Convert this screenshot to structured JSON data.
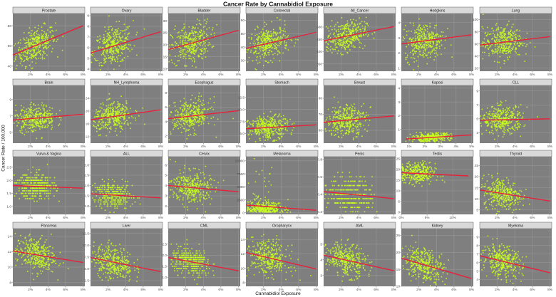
{
  "title": "Cancer Rate by Cannabidiol Exposure",
  "xlabel": "Cannabidiol Exposure",
  "ylabel": "Cancer Rate / 100,000",
  "colors": {
    "point": "#c8ff1e",
    "trend": "#e8203a",
    "panel_bg": "#7f7f7f",
    "grid": "#9c9c9c",
    "strip_bg": "#d9d9d9"
  },
  "chart_data": [
    {
      "type": "scatter",
      "panel": "Prostate",
      "xlim": [
        0,
        8.2
      ],
      "ylim": [
        35,
        92
      ],
      "xticks": [
        2,
        4,
        6,
        8
      ],
      "xtick_labels": [
        "2%",
        "4%",
        "6%",
        "8%"
      ],
      "yticks": [
        40,
        60,
        80
      ],
      "trend": [
        [
          0,
          51
        ],
        [
          8,
          80
        ]
      ],
      "center": [
        2.5,
        62
      ],
      "spread": [
        1.6,
        8
      ]
    },
    {
      "type": "scatter",
      "panel": "Ovary",
      "xlim": [
        0,
        8.2
      ],
      "ylim": [
        3.8,
        9.2
      ],
      "xticks": [
        2,
        4,
        6,
        8
      ],
      "xtick_labels": [
        "2%",
        "4%",
        "6%",
        "8%"
      ],
      "yticks": [
        4,
        5,
        6,
        7,
        8,
        9
      ],
      "trend": [
        [
          0,
          5.5
        ],
        [
          8,
          7.5
        ]
      ],
      "center": [
        2.5,
        6.3
      ],
      "spread": [
        1.6,
        0.9
      ]
    },
    {
      "type": "scatter",
      "panel": "Bladder",
      "xlim": [
        0,
        8.2
      ],
      "ylim": [
        9,
        33
      ],
      "xticks": [
        2,
        4,
        6,
        8
      ],
      "xtick_labels": [
        "2%",
        "4%",
        "6%",
        "8%"
      ],
      "yticks": [
        10,
        15,
        20,
        25,
        30
      ],
      "trend": [
        [
          0,
          18
        ],
        [
          8,
          26
        ]
      ],
      "center": [
        2.5,
        21
      ],
      "spread": [
        1.6,
        4
      ]
    },
    {
      "type": "scatter",
      "panel": "Colorectal",
      "xlim": [
        0,
        8.2
      ],
      "ylim": [
        22,
        65
      ],
      "xticks": [
        2,
        4,
        6,
        8
      ],
      "xtick_labels": [
        "2%",
        "4%",
        "6%",
        "8%"
      ],
      "yticks": [
        30,
        40,
        50,
        60
      ],
      "trend": [
        [
          0,
          39
        ],
        [
          8,
          51
        ]
      ],
      "center": [
        2.5,
        43
      ],
      "spread": [
        1.6,
        6
      ]
    },
    {
      "type": "scatter",
      "panel": "All_Cancer",
      "xlim": [
        0,
        8.2
      ],
      "ylim": [
        320,
        555
      ],
      "xticks": [
        2,
        4,
        6,
        8
      ],
      "xtick_labels": [
        "2%",
        "4%",
        "6%",
        "8%"
      ],
      "yticks": [
        350,
        400,
        450,
        500
      ],
      "trend": [
        [
          0,
          444
        ],
        [
          8,
          502
        ]
      ],
      "center": [
        2.5,
        465
      ],
      "spread": [
        1.6,
        30
      ]
    },
    {
      "type": "scatter",
      "panel": "Hodgkins",
      "xlim": [
        0,
        8.2
      ],
      "ylim": [
        0.8,
        4.6
      ],
      "xticks": [
        2,
        4,
        6,
        8
      ],
      "xtick_labels": [
        "2%",
        "4%",
        "6%",
        "8%"
      ],
      "yticks": [
        1,
        2,
        3,
        4
      ],
      "trend": [
        [
          0,
          2.6
        ],
        [
          8,
          3.2
        ]
      ],
      "center": [
        2.5,
        2.7
      ],
      "spread": [
        1.6,
        0.6
      ]
    },
    {
      "type": "scatter",
      "panel": "Lung",
      "xlim": [
        0,
        8.2
      ],
      "ylim": [
        15,
        110
      ],
      "xticks": [
        2,
        4,
        6,
        8
      ],
      "xtick_labels": [
        "2%",
        "4%",
        "6%",
        "8%"
      ],
      "yticks": [
        20,
        40,
        60,
        80,
        100
      ],
      "trend": [
        [
          0,
          58
        ],
        [
          8,
          72
        ]
      ],
      "center": [
        2.5,
        62
      ],
      "spread": [
        1.6,
        14
      ]
    },
    {
      "type": "scatter",
      "panel": "Brain",
      "xlim": [
        0,
        8.2
      ],
      "ylim": [
        3.7,
        10.7
      ],
      "xticks": [
        2,
        4,
        6,
        8
      ],
      "xtick_labels": [
        "2%",
        "4%",
        "6%",
        "8%"
      ],
      "yticks": [
        5,
        7,
        9
      ],
      "trend": [
        [
          0,
          6.5
        ],
        [
          8,
          7.2
        ]
      ],
      "center": [
        2.5,
        6.8
      ],
      "spread": [
        1.6,
        0.8
      ]
    },
    {
      "type": "scatter",
      "panel": "NH_Lymphoma",
      "xlim": [
        0,
        8.2
      ],
      "ylim": [
        10,
        28
      ],
      "xticks": [
        2,
        4,
        6,
        8
      ],
      "xtick_labels": [
        "2%",
        "4%",
        "6%",
        "8%"
      ],
      "yticks": [
        12,
        16,
        20,
        24
      ],
      "trend": [
        [
          0,
          17.3
        ],
        [
          8,
          20.4
        ]
      ],
      "center": [
        2.5,
        18.2
      ],
      "spread": [
        1.6,
        2.2
      ]
    },
    {
      "type": "scatter",
      "panel": "Esophagus",
      "xlim": [
        0,
        8.2
      ],
      "ylim": [
        1,
        9
      ],
      "xticks": [
        2,
        4,
        6,
        8
      ],
      "xtick_labels": [
        "2%",
        "4%",
        "6%",
        "8%"
      ],
      "yticks": [
        2,
        4,
        6,
        8
      ],
      "trend": [
        [
          0,
          4.4
        ],
        [
          8,
          5.5
        ]
      ],
      "center": [
        2.5,
        4.7
      ],
      "spread": [
        1.6,
        1.1
      ]
    },
    {
      "type": "scatter",
      "panel": "Stomach",
      "xlim": [
        0,
        8.2
      ],
      "ylim": [
        3,
        15
      ],
      "xticks": [
        2,
        4,
        6,
        8
      ],
      "xtick_labels": [
        "2%",
        "4%",
        "6%",
        "8%"
      ],
      "yticks": [
        5,
        7.5,
        10,
        12.5
      ],
      "ytick_labels": [
        "5.0",
        "7.5",
        "10.0",
        "12.5"
      ],
      "trend": [
        [
          0,
          6.0
        ],
        [
          8,
          6.8
        ]
      ],
      "center": [
        2.5,
        6.2
      ],
      "spread": [
        1.6,
        1.2
      ]
    },
    {
      "type": "scatter",
      "panel": "Breast",
      "xlim": [
        0,
        8.2
      ],
      "ylim": [
        52,
        88
      ],
      "xticks": [
        2,
        4,
        6,
        8
      ],
      "xtick_labels": [
        "2%",
        "4%",
        "6%",
        "8%"
      ],
      "yticks": [
        60,
        70,
        80
      ],
      "trend": [
        [
          0,
          65
        ],
        [
          8,
          69
        ]
      ],
      "center": [
        2.5,
        66
      ],
      "spread": [
        1.6,
        5
      ]
    },
    {
      "type": "scatter",
      "panel": "Kaposi",
      "xlim": [
        0.5,
        5.1
      ],
      "ylim": [
        0,
        4.2
      ],
      "xticks": [
        1,
        2,
        3,
        4,
        5
      ],
      "xtick_labels": [
        "1%",
        "2%",
        "3%",
        "4%",
        "5%"
      ],
      "yticks": [
        1,
        2,
        3,
        4
      ],
      "trend": [
        [
          0.8,
          0.3
        ],
        [
          5,
          0.6
        ]
      ],
      "center": [
        2.3,
        0.45
      ],
      "spread": [
        0.9,
        0.15
      ]
    },
    {
      "type": "scatter",
      "panel": "CLL",
      "xlim": [
        0,
        8.2
      ],
      "ylim": [
        1.5,
        9.8
      ],
      "xticks": [
        2,
        4,
        6,
        8
      ],
      "xtick_labels": [
        "2%",
        "4%",
        "6%",
        "8%"
      ],
      "yticks": [
        3,
        5,
        7,
        9
      ],
      "trend": [
        [
          0,
          4.8
        ],
        [
          8,
          5.0
        ]
      ],
      "center": [
        2.5,
        5.1
      ],
      "spread": [
        1.6,
        1.0
      ]
    },
    {
      "type": "scatter",
      "panel": "Vulva & Vagina",
      "xlim": [
        0,
        8.2
      ],
      "ylim": [
        0.7,
        2.9
      ],
      "xticks": [
        2,
        4,
        6,
        8
      ],
      "xtick_labels": [
        "2%",
        "4%",
        "6%",
        "8%"
      ],
      "yticks": [
        1.0,
        1.5,
        2.0,
        2.5
      ],
      "ytick_labels": [
        "1.0",
        "1.5",
        "2.0",
        "2.5"
      ],
      "trend": [
        [
          0,
          1.8
        ],
        [
          8,
          1.7
        ]
      ],
      "center": [
        2.5,
        1.8
      ],
      "spread": [
        1.6,
        0.25
      ],
      "step": 0.1
    },
    {
      "type": "scatter",
      "panel": "ALL",
      "xlim": [
        0,
        8.2
      ],
      "ylim": [
        0.6,
        3.4
      ],
      "xticks": [
        2,
        4,
        6,
        8
      ],
      "xtick_labels": [
        "2%",
        "4%",
        "6%",
        "8%"
      ],
      "yticks": [
        1.0,
        1.5,
        2.0,
        2.5,
        3.0
      ],
      "ytick_labels": [
        "1.0",
        "1.5",
        "2.0",
        "2.5",
        "3.0"
      ],
      "trend": [
        [
          0,
          1.6
        ],
        [
          8,
          1.4
        ]
      ],
      "center": [
        2.5,
        1.6
      ],
      "spread": [
        1.6,
        0.3
      ],
      "step": 0.1
    },
    {
      "type": "scatter",
      "panel": "Cervix",
      "xlim": [
        0,
        8.2
      ],
      "ylim": [
        1.2,
        6.8
      ],
      "xticks": [
        2,
        4,
        6,
        8
      ],
      "xtick_labels": [
        "2%",
        "4%",
        "6%",
        "8%"
      ],
      "yticks": [
        2,
        3,
        4,
        5,
        6
      ],
      "trend": [
        [
          0,
          4.0
        ],
        [
          8,
          3.4
        ]
      ],
      "center": [
        2.5,
        3.8
      ],
      "spread": [
        1.6,
        0.8
      ]
    },
    {
      "type": "scatter",
      "panel": "Melanoma",
      "xlim": [
        0,
        8.2
      ],
      "ylim": [
        -300,
        10800
      ],
      "xticks": [
        2,
        4,
        6,
        8
      ],
      "xtick_labels": [
        "2%",
        "4%",
        "6%",
        "8%"
      ],
      "yticks": [
        0,
        2500,
        5000,
        7500,
        10000
      ],
      "ytick_labels": [
        "0",
        "2500",
        "5000",
        "7500",
        "10000"
      ],
      "trend": [
        [
          0,
          1500
        ],
        [
          8,
          500
        ]
      ],
      "center": [
        2,
        1300
      ],
      "spread": [
        1.5,
        1300
      ],
      "skew": true
    },
    {
      "type": "scatter",
      "panel": "Penis",
      "xlim": [
        0,
        8.2
      ],
      "ylim": [
        0.17,
        0.83
      ],
      "xticks": [
        2,
        4,
        6,
        8
      ],
      "xtick_labels": [
        "2%",
        "4%",
        "6%",
        "8%"
      ],
      "yticks": [
        0.2,
        0.4,
        0.6,
        0.8
      ],
      "ytick_labels": [
        "0.2",
        "0.4",
        "0.6",
        "0.8"
      ],
      "trend": [
        [
          0,
          0.43
        ],
        [
          8,
          0.35
        ]
      ],
      "center": [
        3,
        0.4
      ],
      "spread": [
        1.8,
        0.1
      ],
      "step": 0.05
    },
    {
      "type": "scatter",
      "panel": "Testis",
      "xlim": [
        0,
        14
      ],
      "ylim": [
        -1,
        26
      ],
      "xticks": [
        0,
        5,
        10
      ],
      "xtick_labels": [
        "0%",
        "5%",
        "10%"
      ],
      "yticks": [
        0,
        5,
        10,
        15,
        20,
        25
      ],
      "trend": [
        [
          0,
          18.5
        ],
        [
          13,
          17
        ]
      ],
      "center": [
        3,
        17.5
      ],
      "spread": [
        2.5,
        2.5
      ]
    },
    {
      "type": "scatter",
      "panel": "Thyroid",
      "xlim": [
        0,
        8.2
      ],
      "ylim": [
        3,
        29
      ],
      "xticks": [
        2,
        4,
        6,
        8
      ],
      "xtick_labels": [
        "2%",
        "4%",
        "6%",
        "8%"
      ],
      "yticks": [
        5,
        10,
        15,
        20,
        25
      ],
      "trend": [
        [
          0,
          14
        ],
        [
          8,
          9
        ]
      ],
      "center": [
        2.5,
        13
      ],
      "spread": [
        1.6,
        3.5
      ]
    },
    {
      "type": "scatter",
      "panel": "Pancreas",
      "xlim": [
        0,
        8.2
      ],
      "ylim": [
        7.5,
        15
      ],
      "xticks": [
        2,
        4,
        6,
        8
      ],
      "xtick_labels": [
        "2%",
        "4%",
        "6%",
        "8%"
      ],
      "yticks": [
        8,
        10,
        12,
        14
      ],
      "trend": [
        [
          0,
          12.1
        ],
        [
          8,
          10.6
        ]
      ],
      "center": [
        2.5,
        11.5
      ],
      "spread": [
        1.6,
        1.1
      ]
    },
    {
      "type": "scatter",
      "panel": "Liver",
      "xlim": [
        0,
        8.2
      ],
      "ylim": [
        1.3,
        13.5
      ],
      "xticks": [
        2,
        4,
        6,
        8
      ],
      "xtick_labels": [
        "2%",
        "4%",
        "6%",
        "8%"
      ],
      "yticks": [
        2.5,
        5.0,
        7.5,
        10.0,
        12.5
      ],
      "ytick_labels": [
        "2.5",
        "5.0",
        "7.5",
        "10.0",
        "12.5"
      ],
      "trend": [
        [
          0,
          7.4
        ],
        [
          8,
          4.4
        ]
      ],
      "center": [
        2.5,
        6.5
      ],
      "spread": [
        1.6,
        1.8
      ]
    },
    {
      "type": "scatter",
      "panel": "CML",
      "xlim": [
        0,
        8.2
      ],
      "ylim": [
        0.6,
        3.2
      ],
      "xticks": [
        2,
        4,
        6,
        8
      ],
      "xtick_labels": [
        "2%",
        "4%",
        "6%",
        "8%"
      ],
      "yticks": [
        1.0,
        1.5,
        2.0,
        2.5
      ],
      "ytick_labels": [
        "1.0",
        "1.5",
        "2.0",
        "2.5"
      ],
      "trend": [
        [
          0,
          1.9
        ],
        [
          8,
          1.3
        ]
      ],
      "center": [
        2.5,
        1.7
      ],
      "spread": [
        1.6,
        0.3
      ],
      "step": 0.1
    },
    {
      "type": "scatter",
      "panel": "Oropharynx",
      "xlim": [
        0,
        8.2
      ],
      "ylim": [
        7.5,
        15.5
      ],
      "xticks": [
        2,
        4,
        6,
        8
      ],
      "xtick_labels": [
        "2%",
        "4%",
        "6%",
        "8%"
      ],
      "yticks": [
        8,
        10,
        12,
        14
      ],
      "trend": [
        [
          0,
          12.2
        ],
        [
          8,
          9.9
        ]
      ],
      "center": [
        2.5,
        11.5
      ],
      "spread": [
        1.6,
        1.2
      ]
    },
    {
      "type": "scatter",
      "panel": "AML",
      "xlim": [
        0,
        8.2
      ],
      "ylim": [
        2.3,
        6.0
      ],
      "xticks": [
        2,
        4,
        6,
        8
      ],
      "xtick_labels": [
        "2%",
        "4%",
        "6%",
        "8%"
      ],
      "yticks": [
        3,
        4,
        5
      ],
      "trend": [
        [
          0,
          4.3
        ],
        [
          8,
          3.3
        ]
      ],
      "center": [
        2.5,
        4.0
      ],
      "spread": [
        1.6,
        0.5
      ]
    },
    {
      "type": "scatter",
      "panel": "Kidney",
      "xlim": [
        0,
        8.2
      ],
      "ylim": [
        10,
        27
      ],
      "xticks": [
        2,
        4,
        6,
        8
      ],
      "xtick_labels": [
        "2%",
        "4%",
        "6%",
        "8%"
      ],
      "yticks": [
        10,
        15,
        20,
        25
      ],
      "trend": [
        [
          0,
          18.3
        ],
        [
          8,
          12.3
        ]
      ],
      "center": [
        2.5,
        17
      ],
      "spread": [
        1.6,
        2.5
      ]
    },
    {
      "type": "scatter",
      "panel": "Myeloma",
      "xlim": [
        0,
        8.2
      ],
      "ylim": [
        3.2,
        10
      ],
      "xticks": [
        2,
        4,
        6,
        8
      ],
      "xtick_labels": [
        "2%",
        "4%",
        "6%",
        "8%"
      ],
      "yticks": [
        4,
        5,
        6,
        7,
        8,
        9
      ],
      "trend": [
        [
          0,
          6.8
        ],
        [
          8,
          4.8
        ]
      ],
      "center": [
        2.5,
        6.4
      ],
      "spread": [
        1.6,
        0.9
      ]
    }
  ]
}
